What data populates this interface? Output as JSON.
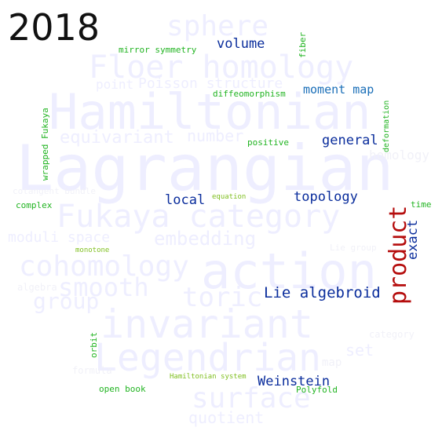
{
  "year": "2018",
  "background_words": {
    "lagrangian": "Lagrangian",
    "hamiltonian": "Hamiltonian",
    "invariant": "invariant",
    "legendrian": "Legendrian",
    "action": "action",
    "fukaya_category": "Fukaya category",
    "floer_homology": "Floer homology",
    "cohomology": "cohomology",
    "sphere": "sphere",
    "surface": "surface",
    "smooth": "smooth",
    "toric": "toric",
    "group": "group",
    "embedding": "embedding",
    "moduli_space": "moduli space",
    "equivariant": "equivariant",
    "number": "number",
    "quotient": "quotient",
    "set": "set",
    "point": "point",
    "poisson_structure": "Poisson structure",
    "homology": "homology",
    "map": "map",
    "cotangent_bundle": "cotangent bundle",
    "lie_group": "Lie group",
    "formula": "formula",
    "category": "category",
    "algebra": "algebra"
  },
  "foreground_words": {
    "volume": "volume",
    "moment_map": "moment map",
    "general": "general",
    "local": "local",
    "topology": "topology",
    "exact": "exact",
    "product": "product",
    "lie_algebroid": "Lie algebroid",
    "weinstein": "Weinstein",
    "mirror_symmetry": "mirror symmetry",
    "fiber": "fiber",
    "diffeomorphism": "diffeomorphism",
    "deformation": "deformation",
    "wrapped_fukaya": "wrapped Fukaya",
    "positive": "positive",
    "complex": "complex",
    "equation": "equation",
    "time": "time",
    "monotone": "monotone",
    "orbit": "orbit",
    "open_book": "open book",
    "hamiltonian_system": "Hamiltonian system",
    "polyfold": "Polyfold"
  }
}
